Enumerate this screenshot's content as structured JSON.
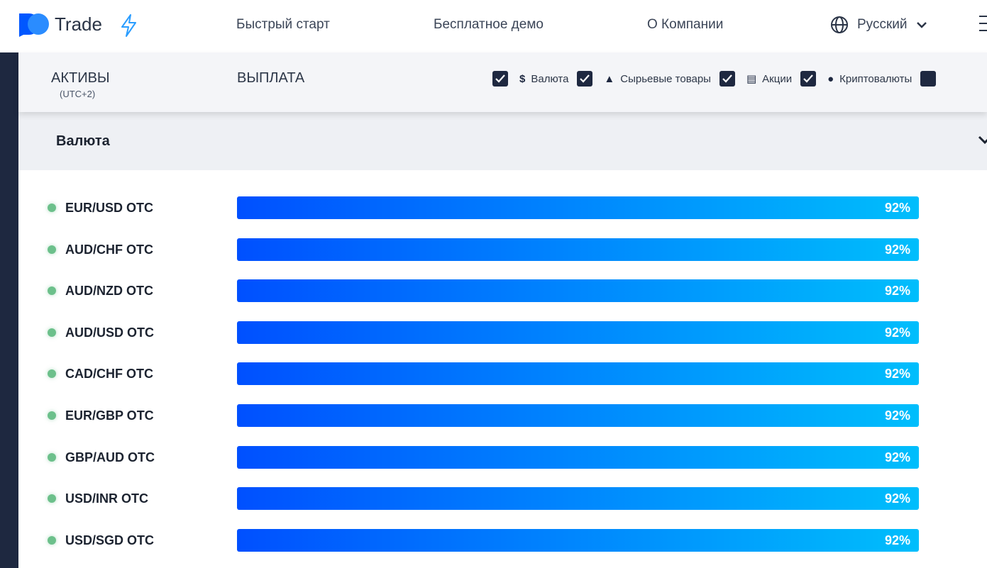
{
  "header": {
    "logo": "Trade",
    "nav": [
      "Быстрый старт",
      "Бесплатное демо",
      "О Компании"
    ],
    "language": "Русский"
  },
  "columns": {
    "assets": "АКТИВЫ",
    "timezone": "(UTC+2)",
    "payout": "ВЫПЛАТА"
  },
  "filters": [
    "Валюта",
    "Сырьевые товары",
    "Акции",
    "Криптовалюты"
  ],
  "section": {
    "title": "Валюта",
    "rows": [
      {
        "asset": "EUR/USD OTC",
        "payout": "92%"
      },
      {
        "asset": "AUD/CHF OTC",
        "payout": "92%"
      },
      {
        "asset": "AUD/NZD OTC",
        "payout": "92%"
      },
      {
        "asset": "AUD/USD OTC",
        "payout": "92%"
      },
      {
        "asset": "CAD/CHF OTC",
        "payout": "92%"
      },
      {
        "asset": "EUR/GBP OTC",
        "payout": "92%"
      },
      {
        "asset": "GBP/AUD OTC",
        "payout": "92%"
      },
      {
        "asset": "USD/INR OTC",
        "payout": "92%"
      },
      {
        "asset": "USD/SGD OTC",
        "payout": "92%"
      }
    ]
  }
}
